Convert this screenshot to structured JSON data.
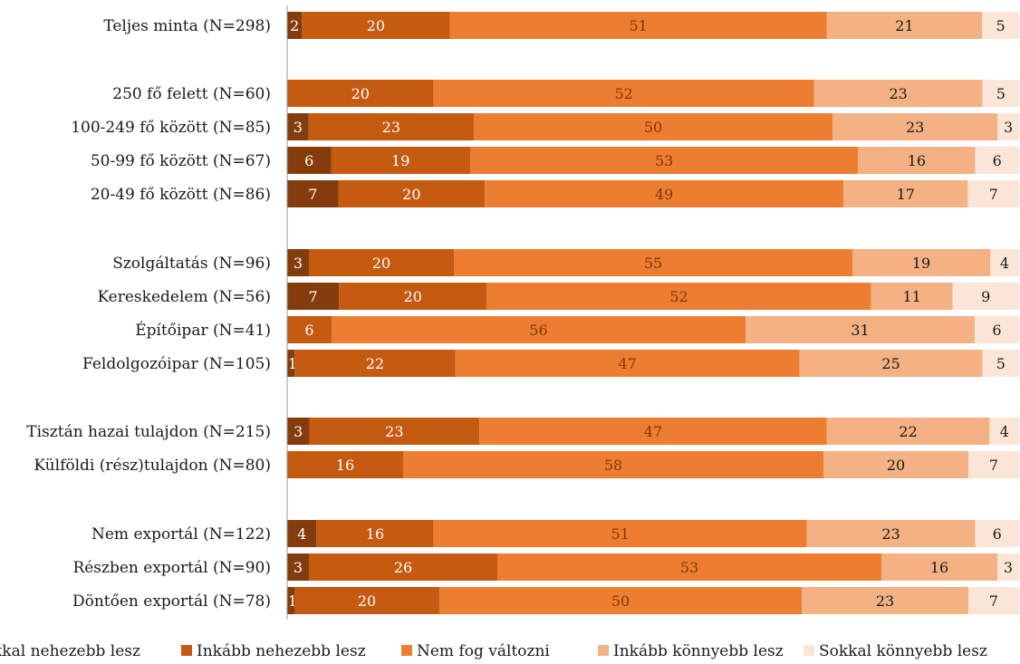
{
  "chart_data": {
    "type": "bar",
    "orientation": "horizontal",
    "stacked": true,
    "title": "",
    "xlabel": "",
    "ylabel": "",
    "xlim": [
      0,
      100
    ],
    "grid": false,
    "legend_position": "bottom",
    "categories": [
      "Teljes minta (N=298)",
      "250 fő felett (N=60)",
      "100-249 fő között (N=85)",
      "50-99 fő között (N=67)",
      "20-49 fő között (N=86)",
      "Szolgáltatás (N=96)",
      "Kereskedelem (N=56)",
      "Építőipar (N=41)",
      "Feldolgozóipar (N=105)",
      "Tisztán hazai tulajdon (N=215)",
      "Külföldi (rész)tulajdon (N=80)",
      "Nem exportál (N=122)",
      "Részben exportál (N=90)",
      "Döntően exportál (N=78)"
    ],
    "series": [
      {
        "name": "kkal nehezebb lesz",
        "color": "#843c0c",
        "label_color": "#ffffff",
        "values": [
          2,
          0,
          3,
          6,
          7,
          3,
          7,
          0,
          1,
          3,
          0,
          4,
          3,
          1
        ]
      },
      {
        "name": "Inkább nehezebb lesz",
        "color": "#c55a11",
        "label_color": "#ffffff",
        "values": [
          20,
          20,
          23,
          19,
          20,
          20,
          20,
          6,
          22,
          23,
          16,
          16,
          26,
          20
        ]
      },
      {
        "name": "Nem fog változni",
        "color": "#ed7d31",
        "label_color": "#7f3a0a",
        "values": [
          51,
          52,
          50,
          53,
          49,
          55,
          52,
          56,
          47,
          47,
          58,
          51,
          53,
          50
        ]
      },
      {
        "name": "Inkább könnyebb lesz",
        "color": "#f4b183",
        "label_color": "#1a1a1a",
        "values": [
          21,
          23,
          23,
          16,
          17,
          19,
          11,
          31,
          25,
          22,
          20,
          23,
          16,
          23
        ]
      },
      {
        "name": "Sokkal könnyebb lesz",
        "color": "#fbe5d6",
        "label_color": "#1a1a1a",
        "values": [
          5,
          5,
          3,
          6,
          7,
          4,
          9,
          6,
          5,
          4,
          7,
          6,
          3,
          7
        ]
      }
    ]
  }
}
